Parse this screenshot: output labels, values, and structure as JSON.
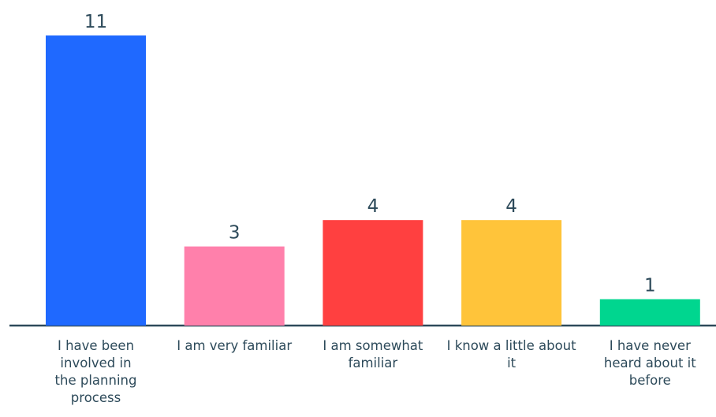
{
  "chart_data": {
    "type": "bar",
    "categories": [
      "I have been involved in the planning process",
      "I am very familiar",
      "I am somewhat familiar",
      "I know a little about it",
      "I have never heard about it before"
    ],
    "values": [
      11,
      3,
      4,
      4,
      1
    ],
    "colors": [
      "#1f69ff",
      "#ff80ab",
      "#ff4040",
      "#ffc43a",
      "#00d68f"
    ]
  }
}
